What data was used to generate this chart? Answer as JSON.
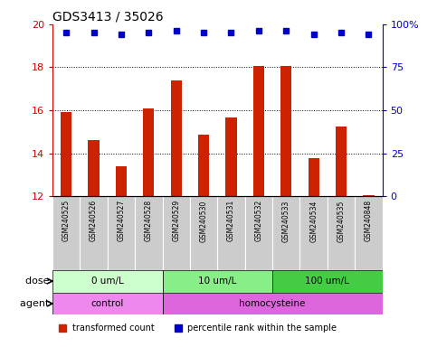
{
  "title": "GDS3413 / 35026",
  "samples": [
    "GSM240525",
    "GSM240526",
    "GSM240527",
    "GSM240528",
    "GSM240529",
    "GSM240530",
    "GSM240531",
    "GSM240532",
    "GSM240533",
    "GSM240534",
    "GSM240535",
    "GSM240848"
  ],
  "transformed_counts": [
    15.9,
    14.6,
    13.4,
    16.1,
    17.4,
    14.85,
    15.65,
    18.05,
    18.05,
    13.75,
    15.25,
    12.05
  ],
  "percentile_ranks_pct": [
    95,
    95,
    94,
    95,
    96,
    95,
    95,
    96,
    96,
    94,
    95,
    94
  ],
  "ylim_left": [
    12,
    20
  ],
  "ylim_right": [
    0,
    100
  ],
  "yticks_left": [
    12,
    14,
    16,
    18,
    20
  ],
  "yticks_right": [
    0,
    25,
    50,
    75,
    100
  ],
  "bar_color": "#cc2200",
  "dot_color": "#0000cc",
  "dose_groups": [
    {
      "label": "0 um/L",
      "start": 0,
      "end": 3,
      "color": "#ccffcc"
    },
    {
      "label": "10 um/L",
      "start": 4,
      "end": 7,
      "color": "#88ee88"
    },
    {
      "label": "100 um/L",
      "start": 8,
      "end": 11,
      "color": "#44cc44"
    }
  ],
  "agent_groups": [
    {
      "label": "control",
      "start": 0,
      "end": 3,
      "color": "#ee88ee"
    },
    {
      "label": "homocysteine",
      "start": 4,
      "end": 11,
      "color": "#dd66dd"
    }
  ],
  "dose_label": "dose",
  "agent_label": "agent",
  "tick_label_bg": "#cccccc",
  "left_axis_color": "#cc0000",
  "right_axis_color": "#0000cc"
}
